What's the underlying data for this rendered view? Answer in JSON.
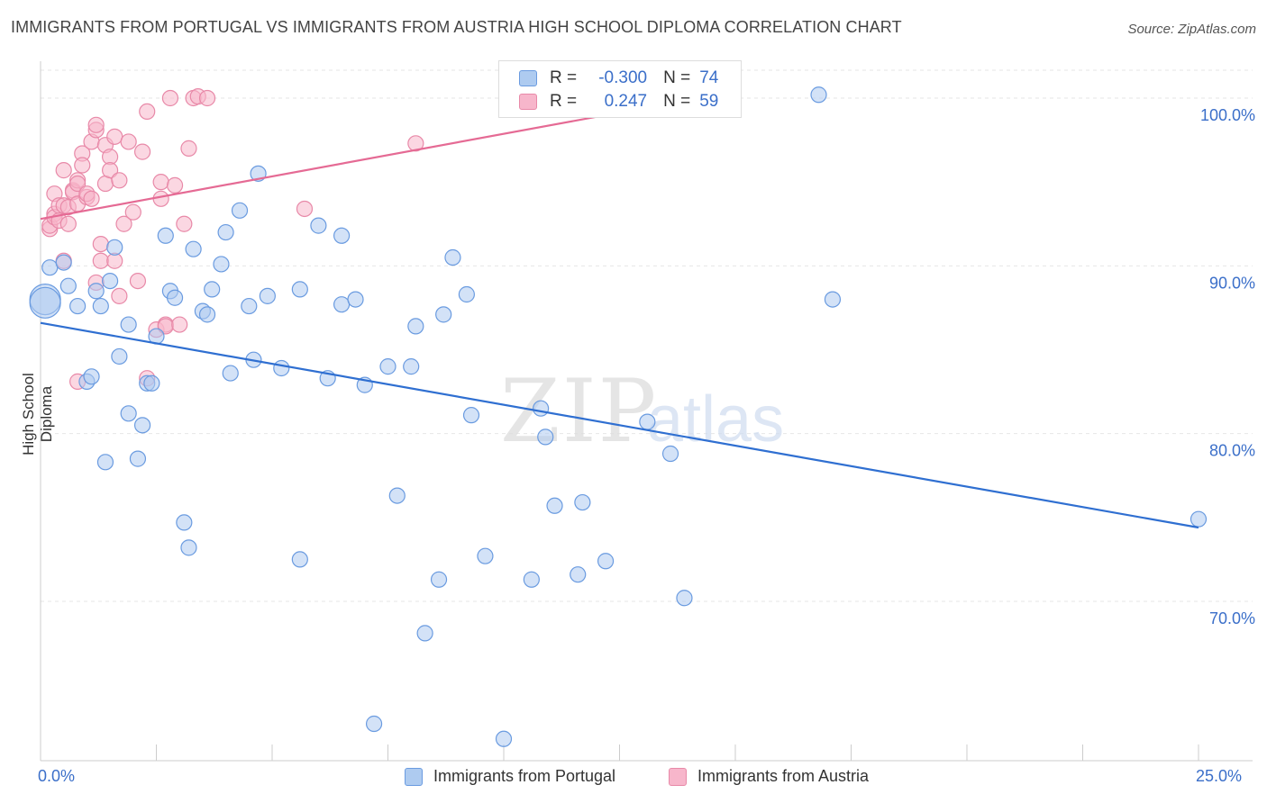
{
  "header": {
    "title": "IMMIGRANTS FROM PORTUGAL VS IMMIGRANTS FROM AUSTRIA HIGH SCHOOL DIPLOMA CORRELATION CHART",
    "source": "Source: ZipAtlas.com"
  },
  "watermark": {
    "zip": "ZIP",
    "atlas": "atlas"
  },
  "legend": {
    "r_label": "R =",
    "n_label": "N =",
    "rows": [
      {
        "r": "-0.300",
        "n": "74"
      },
      {
        "r": "0.247",
        "n": "59"
      }
    ]
  },
  "colors": {
    "portugal_fill": "#aecbf0",
    "portugal_stroke": "#6a9be0",
    "portugal_line": "#2f6fd1",
    "austria_fill": "#f7b6cb",
    "austria_stroke": "#e889a8",
    "austria_line": "#e56a94",
    "axis_label": "#3b6fc9"
  },
  "chart_data": {
    "type": "scatter",
    "title": "IMMIGRANTS FROM PORTUGAL VS IMMIGRANTS FROM AUSTRIA HIGH SCHOOL DIPLOMA CORRELATION CHART",
    "xlabel": "",
    "ylabel": "High School Diploma",
    "xlim": [
      0,
      25
    ],
    "ylim": [
      60.5,
      102.2
    ],
    "x_tick_labels": [
      "0.0%",
      "25.0%"
    ],
    "y_ticks": [
      70,
      80,
      90,
      100
    ],
    "y_tick_labels": [
      "70.0%",
      "80.0%",
      "90.0%",
      "100.0%"
    ],
    "grid": true,
    "legend_position": "top-center",
    "series": [
      {
        "name": "Immigrants from Portugal",
        "trend": {
          "x": [
            0,
            25
          ],
          "y": [
            86.6,
            74.4
          ]
        },
        "points": [
          [
            0.2,
            89.9
          ],
          [
            0.5,
            90.2
          ],
          [
            0.6,
            88.8
          ],
          [
            0.8,
            87.6
          ],
          [
            1.0,
            83.1
          ],
          [
            1.1,
            83.4
          ],
          [
            1.2,
            88.5
          ],
          [
            1.3,
            87.6
          ],
          [
            1.5,
            89.1
          ],
          [
            1.6,
            91.1
          ],
          [
            1.7,
            84.6
          ],
          [
            1.9,
            86.5
          ],
          [
            1.4,
            78.3
          ],
          [
            1.9,
            81.2
          ],
          [
            2.1,
            78.5
          ],
          [
            2.2,
            80.5
          ],
          [
            2.3,
            83.0
          ],
          [
            2.4,
            83.0
          ],
          [
            2.5,
            85.8
          ],
          [
            2.7,
            91.8
          ],
          [
            2.8,
            88.5
          ],
          [
            2.9,
            88.1
          ],
          [
            3.1,
            74.7
          ],
          [
            3.2,
            73.2
          ],
          [
            3.3,
            91.0
          ],
          [
            3.5,
            87.3
          ],
          [
            3.6,
            87.1
          ],
          [
            3.7,
            88.6
          ],
          [
            3.9,
            90.1
          ],
          [
            4.0,
            92.0
          ],
          [
            4.1,
            83.6
          ],
          [
            4.3,
            93.3
          ],
          [
            4.5,
            87.6
          ],
          [
            4.6,
            84.4
          ],
          [
            4.7,
            95.5
          ],
          [
            4.9,
            88.2
          ],
          [
            5.2,
            83.9
          ],
          [
            5.6,
            72.5
          ],
          [
            5.6,
            88.6
          ],
          [
            6.0,
            92.4
          ],
          [
            6.2,
            83.3
          ],
          [
            6.5,
            91.8
          ],
          [
            6.5,
            87.7
          ],
          [
            6.8,
            88.0
          ],
          [
            7.0,
            82.9
          ],
          [
            7.2,
            62.7
          ],
          [
            7.5,
            84.0
          ],
          [
            7.7,
            76.3
          ],
          [
            8.0,
            84.0
          ],
          [
            8.1,
            86.4
          ],
          [
            8.3,
            68.1
          ],
          [
            8.6,
            71.3
          ],
          [
            8.7,
            87.1
          ],
          [
            8.9,
            90.5
          ],
          [
            9.2,
            88.3
          ],
          [
            9.3,
            81.1
          ],
          [
            9.6,
            72.7
          ],
          [
            10.0,
            61.8
          ],
          [
            10.6,
            71.3
          ],
          [
            10.8,
            81.5
          ],
          [
            10.9,
            79.8
          ],
          [
            11.1,
            75.7
          ],
          [
            11.6,
            71.6
          ],
          [
            11.7,
            75.9
          ],
          [
            12.2,
            72.4
          ],
          [
            13.1,
            80.7
          ],
          [
            13.6,
            78.8
          ],
          [
            13.9,
            70.2
          ],
          [
            14.0,
            100.3
          ],
          [
            16.8,
            100.2
          ],
          [
            17.1,
            88.0
          ],
          [
            25.0,
            74.9
          ],
          [
            0.1,
            88.0
          ],
          [
            0.1,
            87.8
          ]
        ]
      },
      {
        "name": "Immigrants from Austria",
        "trend": {
          "x": [
            0,
            14.0
          ],
          "y": [
            92.8,
            99.9
          ]
        },
        "points": [
          [
            0.2,
            92.2
          ],
          [
            0.2,
            92.4
          ],
          [
            0.3,
            93.1
          ],
          [
            0.3,
            92.9
          ],
          [
            0.3,
            94.3
          ],
          [
            0.4,
            92.7
          ],
          [
            0.4,
            93.6
          ],
          [
            0.5,
            90.3
          ],
          [
            0.5,
            93.6
          ],
          [
            0.5,
            95.7
          ],
          [
            0.6,
            92.5
          ],
          [
            0.6,
            93.5
          ],
          [
            0.7,
            94.5
          ],
          [
            0.7,
            94.4
          ],
          [
            0.8,
            93.7
          ],
          [
            0.8,
            95.1
          ],
          [
            0.8,
            94.9
          ],
          [
            0.9,
            96.7
          ],
          [
            0.9,
            96.0
          ],
          [
            1.0,
            94.1
          ],
          [
            1.0,
            94.3
          ],
          [
            1.1,
            94.0
          ],
          [
            1.1,
            97.4
          ],
          [
            1.2,
            98.1
          ],
          [
            1.2,
            98.4
          ],
          [
            1.2,
            89.0
          ],
          [
            1.3,
            90.3
          ],
          [
            1.3,
            91.3
          ],
          [
            1.4,
            97.2
          ],
          [
            1.4,
            94.9
          ],
          [
            1.5,
            96.5
          ],
          [
            1.5,
            95.7
          ],
          [
            1.6,
            97.7
          ],
          [
            1.6,
            90.3
          ],
          [
            1.7,
            88.2
          ],
          [
            1.7,
            95.1
          ],
          [
            1.8,
            92.5
          ],
          [
            1.9,
            97.4
          ],
          [
            2.0,
            93.2
          ],
          [
            2.1,
            89.1
          ],
          [
            2.2,
            96.8
          ],
          [
            2.3,
            99.2
          ],
          [
            2.3,
            83.3
          ],
          [
            2.5,
            86.2
          ],
          [
            2.6,
            94.0
          ],
          [
            2.6,
            95.0
          ],
          [
            2.7,
            86.5
          ],
          [
            2.7,
            86.4
          ],
          [
            2.8,
            100.0
          ],
          [
            2.9,
            94.8
          ],
          [
            3.0,
            86.5
          ],
          [
            3.1,
            92.5
          ],
          [
            3.2,
            97.0
          ],
          [
            3.3,
            100.0
          ],
          [
            3.4,
            100.1
          ],
          [
            3.6,
            100.0
          ],
          [
            5.7,
            93.4
          ],
          [
            8.1,
            97.3
          ],
          [
            0.8,
            83.1
          ]
        ]
      }
    ]
  },
  "bottom_legend": [
    {
      "label": "Immigrants from Portugal"
    },
    {
      "label": "Immigrants from Austria"
    }
  ]
}
